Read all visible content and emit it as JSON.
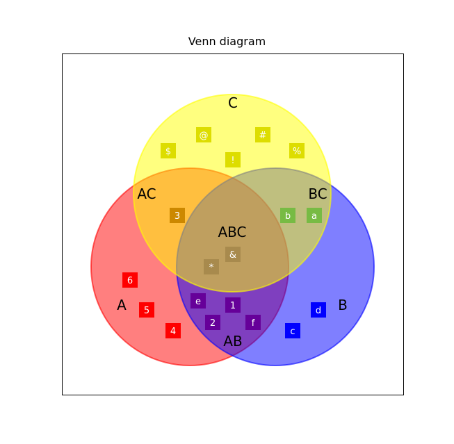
{
  "title": "Venn diagram",
  "sets": [
    {
      "name": "A",
      "label": "A",
      "color": "#ff0000",
      "opacity": 0.5
    },
    {
      "name": "B",
      "label": "B",
      "color": "#0000ff",
      "opacity": 0.5
    },
    {
      "name": "C",
      "label": "C",
      "color": "#ffff00",
      "opacity": 0.5
    }
  ],
  "region_labels": [
    "A",
    "B",
    "C",
    "AB",
    "AC",
    "BC",
    "ABC"
  ],
  "items": [
    {
      "text": "6",
      "region": "A",
      "color": "#ff0000"
    },
    {
      "text": "5",
      "region": "A",
      "color": "#ff0000"
    },
    {
      "text": "4",
      "region": "A",
      "color": "#ff0000"
    },
    {
      "text": "d",
      "region": "B",
      "color": "#0000ff"
    },
    {
      "text": "c",
      "region": "B",
      "color": "#0000ff"
    },
    {
      "text": "@",
      "region": "C",
      "color": "#dddd00"
    },
    {
      "text": "#",
      "region": "C",
      "color": "#dddd00"
    },
    {
      "text": "$",
      "region": "C",
      "color": "#dddd00"
    },
    {
      "text": "%",
      "region": "C",
      "color": "#dddd00"
    },
    {
      "text": "!",
      "region": "C",
      "color": "#dddd00"
    },
    {
      "text": "3",
      "region": "AC",
      "color": "#cc8800"
    },
    {
      "text": "b",
      "region": "BC",
      "color": "#77bb44"
    },
    {
      "text": "a",
      "region": "BC",
      "color": "#77bb44"
    },
    {
      "text": "&",
      "region": "ABC",
      "color": "#a88a4d"
    },
    {
      "text": "*",
      "region": "ABC",
      "color": "#a88a4d"
    },
    {
      "text": "e",
      "region": "AB",
      "color": "#660099"
    },
    {
      "text": "1",
      "region": "AB",
      "color": "#660099"
    },
    {
      "text": "2",
      "region": "AB",
      "color": "#660099"
    },
    {
      "text": "f",
      "region": "AB",
      "color": "#660099"
    }
  ]
}
